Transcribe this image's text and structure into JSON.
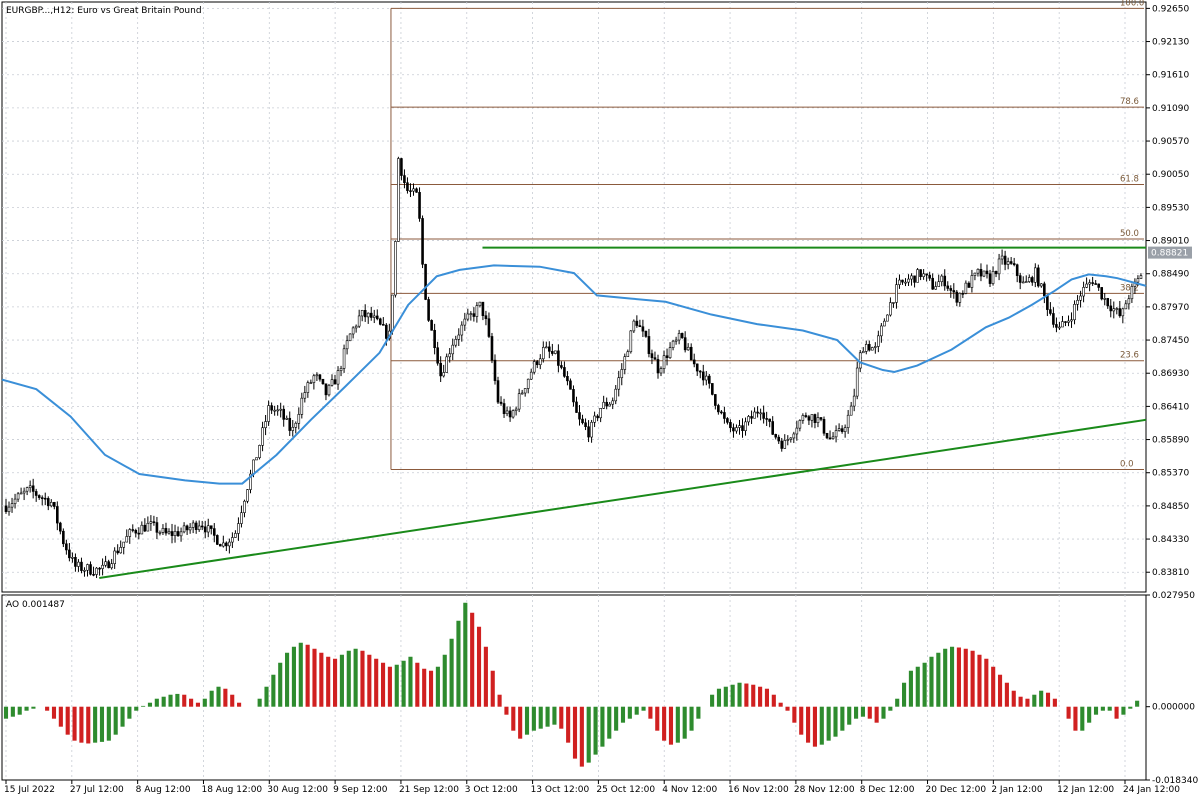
{
  "window": {
    "title": "EURGBP...,H12:  Euro vs Great Britain Pound"
  },
  "colors": {
    "background": "#ffffff",
    "grid": "#c8ccd4",
    "candle": "#000000",
    "ma_line": "#3a8fd8",
    "trendline": "#1a8a1a",
    "fib_line": "#8b5a3c",
    "ao_up": "#2e8b2e",
    "ao_down": "#d02020",
    "current_price_tag": "#9aa0a8"
  },
  "chart_data": [
    {
      "type": "candlestick",
      "symbol_label": "EURGBP...,H12:  Euro vs Great Britain Pound",
      "price_axis": {
        "ylim": [
          0.835,
          0.9275
        ],
        "ticks": [
          "0.92650",
          "0.92130",
          "0.91610",
          "0.91090",
          "0.90570",
          "0.90050",
          "0.89530",
          "0.89010",
          "0.88490",
          "0.87970",
          "0.87450",
          "0.86930",
          "0.86410",
          "0.85890",
          "0.85370",
          "0.84850",
          "0.84330",
          "0.83810"
        ]
      },
      "time_axis": {
        "ticks": [
          "15 Jul 2022",
          "27 Jul 12:00",
          "8 Aug 12:00",
          "18 Aug 12:00",
          "30 Aug 12:00",
          "9 Sep 12:00",
          "21 Sep 12:00",
          "3 Oct 12:00",
          "13 Oct 12:00",
          "25 Oct 12:00",
          "4 Nov 12:00",
          "16 Nov 12:00",
          "28 Nov 12:00",
          "8 Dec 12:00",
          "20 Dec 12:00",
          "2 Jan 12:00",
          "12 Jan 12:00",
          "24 Jan 12:00"
        ]
      },
      "current_price": "0.88821",
      "moving_average_path": [
        [
          0,
          0.8683
        ],
        [
          0.03,
          0.8668
        ],
        [
          0.06,
          0.8625
        ],
        [
          0.09,
          0.8565
        ],
        [
          0.12,
          0.8535
        ],
        [
          0.16,
          0.8525
        ],
        [
          0.19,
          0.852
        ],
        [
          0.21,
          0.852
        ],
        [
          0.24,
          0.8565
        ],
        [
          0.27,
          0.862
        ],
        [
          0.3,
          0.8672
        ],
        [
          0.33,
          0.8725
        ],
        [
          0.355,
          0.88
        ],
        [
          0.38,
          0.8845
        ],
        [
          0.4,
          0.8855
        ],
        [
          0.43,
          0.8862
        ],
        [
          0.47,
          0.886
        ],
        [
          0.5,
          0.885
        ],
        [
          0.52,
          0.8815
        ],
        [
          0.55,
          0.881
        ],
        [
          0.58,
          0.8805
        ],
        [
          0.62,
          0.8785
        ],
        [
          0.66,
          0.877
        ],
        [
          0.7,
          0.876
        ],
        [
          0.73,
          0.8745
        ],
        [
          0.75,
          0.871
        ],
        [
          0.77,
          0.8698
        ],
        [
          0.78,
          0.8695
        ],
        [
          0.8,
          0.8705
        ],
        [
          0.83,
          0.873
        ],
        [
          0.86,
          0.8765
        ],
        [
          0.88,
          0.878
        ],
        [
          0.9,
          0.88
        ],
        [
          0.92,
          0.8822
        ],
        [
          0.935,
          0.884
        ],
        [
          0.95,
          0.8848
        ],
        [
          0.965,
          0.8845
        ],
        [
          0.975,
          0.8842
        ],
        [
          1.0,
          0.883
        ]
      ],
      "trendlines": [
        {
          "name": "rising-support",
          "from": [
            0.085,
            0.8372
          ],
          "to": [
            1.0,
            0.862
          ]
        },
        {
          "name": "horizontal-resistance",
          "from": [
            0.42,
            0.889
          ],
          "to": [
            1.0,
            0.889
          ]
        }
      ],
      "fibonacci": {
        "start_x": 0.34,
        "high": 0.9265,
        "low": 0.8542,
        "levels": [
          {
            "label": "100.0",
            "ratio": 1.0
          },
          {
            "label": "78.6",
            "ratio": 0.786
          },
          {
            "label": "61.8",
            "ratio": 0.618
          },
          {
            "label": "50.0",
            "ratio": 0.5
          },
          {
            "label": "38.2",
            "ratio": 0.382
          },
          {
            "label": "23.6",
            "ratio": 0.236
          },
          {
            "label": "0.0",
            "ratio": 0.0
          }
        ]
      },
      "price_path": [
        [
          0,
          0.8485
        ],
        [
          0.02,
          0.851
        ],
        [
          0.04,
          0.849
        ],
        [
          0.05,
          0.843
        ],
        [
          0.06,
          0.839
        ],
        [
          0.075,
          0.8385
        ],
        [
          0.085,
          0.8385
        ],
        [
          0.095,
          0.841
        ],
        [
          0.11,
          0.8445
        ],
        [
          0.125,
          0.8455
        ],
        [
          0.14,
          0.844
        ],
        [
          0.155,
          0.8445
        ],
        [
          0.17,
          0.846
        ],
        [
          0.18,
          0.844
        ],
        [
          0.19,
          0.8425
        ],
        [
          0.2,
          0.844
        ],
        [
          0.21,
          0.851
        ],
        [
          0.22,
          0.857
        ],
        [
          0.23,
          0.864
        ],
        [
          0.24,
          0.863
        ],
        [
          0.25,
          0.86
        ],
        [
          0.26,
          0.866
        ],
        [
          0.27,
          0.869
        ],
        [
          0.28,
          0.866
        ],
        [
          0.29,
          0.869
        ],
        [
          0.3,
          0.875
        ],
        [
          0.31,
          0.8785
        ],
        [
          0.32,
          0.878
        ],
        [
          0.33,
          0.876
        ],
        [
          0.335,
          0.875
        ],
        [
          0.34,
          0.888
        ],
        [
          0.343,
          0.903
        ],
        [
          0.35,
          0.898
        ],
        [
          0.36,
          0.897
        ],
        [
          0.365,
          0.884
        ],
        [
          0.37,
          0.877
        ],
        [
          0.375,
          0.874
        ],
        [
          0.38,
          0.869
        ],
        [
          0.39,
          0.874
        ],
        [
          0.4,
          0.877
        ],
        [
          0.41,
          0.879
        ],
        [
          0.415,
          0.88
        ],
        [
          0.42,
          0.877
        ],
        [
          0.43,
          0.865
        ],
        [
          0.44,
          0.862
        ],
        [
          0.45,
          0.866
        ],
        [
          0.46,
          0.87
        ],
        [
          0.47,
          0.873
        ],
        [
          0.48,
          0.872
        ],
        [
          0.49,
          0.868
        ],
        [
          0.5,
          0.862
        ],
        [
          0.51,
          0.86
        ],
        [
          0.52,
          0.864
        ],
        [
          0.53,
          0.865
        ],
        [
          0.54,
          0.871
        ],
        [
          0.55,
          0.878
        ],
        [
          0.56,
          0.874
        ],
        [
          0.57,
          0.87
        ],
        [
          0.58,
          0.873
        ],
        [
          0.59,
          0.875
        ],
        [
          0.6,
          0.871
        ],
        [
          0.61,
          0.869
        ],
        [
          0.62,
          0.865
        ],
        [
          0.63,
          0.861
        ],
        [
          0.64,
          0.86
        ],
        [
          0.65,
          0.862
        ],
        [
          0.66,
          0.864
        ],
        [
          0.67,
          0.86
        ],
        [
          0.68,
          0.858
        ],
        [
          0.69,
          0.861
        ],
        [
          0.7,
          0.863
        ],
        [
          0.71,
          0.862
        ],
        [
          0.72,
          0.859
        ],
        [
          0.73,
          0.86
        ],
        [
          0.74,
          0.864
        ],
        [
          0.745,
          0.871
        ],
        [
          0.75,
          0.874
        ],
        [
          0.76,
          0.873
        ],
        [
          0.77,
          0.879
        ],
        [
          0.78,
          0.883
        ],
        [
          0.79,
          0.884
        ],
        [
          0.8,
          0.885
        ],
        [
          0.81,
          0.883
        ],
        [
          0.82,
          0.884
        ],
        [
          0.83,
          0.881
        ],
        [
          0.84,
          0.883
        ],
        [
          0.85,
          0.885
        ],
        [
          0.86,
          0.884
        ],
        [
          0.87,
          0.887
        ],
        [
          0.88,
          0.886
        ],
        [
          0.89,
          0.883
        ],
        [
          0.9,
          0.885
        ],
        [
          0.91,
          0.88
        ],
        [
          0.92,
          0.876
        ],
        [
          0.93,
          0.878
        ],
        [
          0.94,
          0.882
        ],
        [
          0.95,
          0.884
        ],
        [
          0.96,
          0.881
        ],
        [
          0.97,
          0.879
        ],
        [
          0.975,
          0.878
        ],
        [
          0.98,
          0.881
        ],
        [
          0.99,
          0.884
        ],
        [
          1.0,
          0.8882
        ]
      ]
    },
    {
      "type": "bar",
      "name": "AO",
      "label": "AO 0.001487",
      "ylim": [
        -0.01834,
        0.02795
      ],
      "ticks": [
        "0.027950",
        "0.000000",
        "-0.018340"
      ],
      "values": [
        -0.003,
        -0.0025,
        -0.002,
        -0.001,
        -0.0005,
        0.0,
        -0.001,
        -0.003,
        -0.005,
        -0.007,
        -0.0085,
        -0.009,
        -0.0092,
        -0.009,
        -0.0088,
        -0.0085,
        -0.007,
        -0.005,
        -0.003,
        -0.001,
        0.0002,
        0.001,
        0.002,
        0.0025,
        0.003,
        0.0032,
        0.003,
        0.002,
        0.001,
        0.002,
        0.004,
        0.005,
        0.0045,
        0.003,
        0.001,
        0.0,
        0.0,
        0.002,
        0.005,
        0.008,
        0.011,
        0.0135,
        0.015,
        0.016,
        0.0155,
        0.0145,
        0.0135,
        0.0125,
        0.012,
        0.013,
        0.014,
        0.0145,
        0.014,
        0.013,
        0.012,
        0.011,
        0.01,
        0.0105,
        0.0115,
        0.0125,
        0.011,
        0.0095,
        0.009,
        0.01,
        0.013,
        0.017,
        0.0215,
        0.026,
        0.0235,
        0.02,
        0.015,
        0.009,
        0.003,
        -0.002,
        -0.006,
        -0.008,
        -0.007,
        -0.006,
        -0.0055,
        -0.005,
        -0.0045,
        -0.0055,
        -0.009,
        -0.013,
        -0.015,
        -0.014,
        -0.012,
        -0.01,
        -0.008,
        -0.006,
        -0.004,
        -0.003,
        -0.002,
        -0.001,
        -0.003,
        -0.006,
        -0.0085,
        -0.0095,
        -0.009,
        -0.008,
        -0.006,
        -0.003,
        0.0,
        0.003,
        0.0045,
        0.005,
        0.0055,
        0.006,
        0.0058,
        0.0055,
        0.005,
        0.0045,
        0.003,
        0.001,
        -0.001,
        -0.004,
        -0.007,
        -0.009,
        -0.01,
        -0.0095,
        -0.0085,
        -0.0075,
        -0.006,
        -0.0045,
        -0.003,
        -0.0025,
        -0.003,
        -0.004,
        -0.003,
        -0.001,
        0.002,
        0.006,
        0.009,
        0.01,
        0.011,
        0.0125,
        0.0135,
        0.0145,
        0.015,
        0.0148,
        0.0145,
        0.014,
        0.013,
        0.012,
        0.01,
        0.008,
        0.006,
        0.004,
        0.0025,
        0.002,
        0.003,
        0.004,
        0.0035,
        0.002,
        0.0,
        -0.003,
        -0.006,
        -0.006,
        -0.004,
        -0.002,
        -0.001,
        -0.001,
        -0.003,
        -0.002,
        -0.0005,
        0.0015
      ]
    }
  ]
}
